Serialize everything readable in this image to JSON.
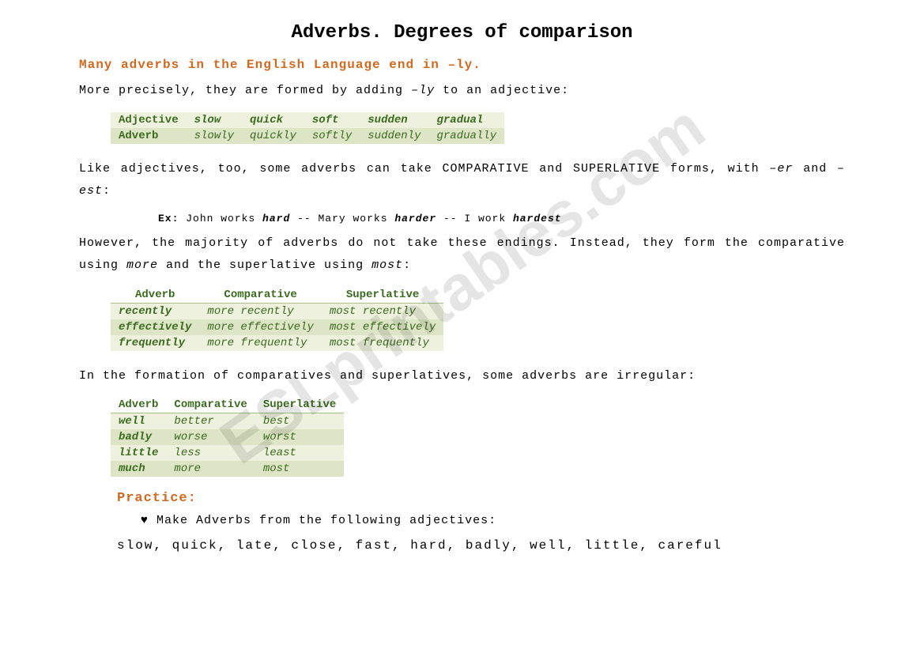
{
  "title": "Adverbs. Degrees of comparison",
  "subtitle": "Many adverbs in the English Language end in –ly.",
  "intro": {
    "pre": "More precisely, they are formed by adding ",
    "suffix": "–ly",
    "post": " to an adjective:"
  },
  "table1": {
    "colors": {
      "header_text": "#3a6b1e",
      "row_light": "#eef1dd",
      "row_dark": "#dde5c6"
    },
    "rows": [
      {
        "head": "Adjective",
        "cells": [
          "slow",
          "quick",
          "soft",
          "sudden",
          "gradual"
        ]
      },
      {
        "head": "Adverb",
        "cells": [
          "slowly",
          "quickly",
          "softly",
          "suddenly",
          "gradually"
        ]
      }
    ]
  },
  "para2": {
    "pre": "Like adjectives, too, some adverbs can take COMPARATIVE and SUPERLATIVE forms, with ",
    "s1": "–er",
    "mid": " and ",
    "s2": "–est",
    "post": ":"
  },
  "example": {
    "label": "Ex: ",
    "p1": "John works ",
    "w1": "hard",
    "sep1": " -- ",
    "p2": "Mary works ",
    "w2": "harder",
    "sep2": " -- ",
    "p3": "I work ",
    "w3": "hardest"
  },
  "para3": {
    "pre": "However, the majority of adverbs do not take these endings. Instead, they form the comparative using ",
    "w1": "more",
    "mid": " and the superlative using ",
    "w2": "most",
    "post": ":"
  },
  "table2": {
    "headers": [
      "Adverb",
      "Comparative",
      "Superlative"
    ],
    "rows": [
      {
        "adv": "recently",
        "comp": "more recently",
        "sup": "most recently"
      },
      {
        "adv": "effectively",
        "comp": "more effectively",
        "sup": "most effectively"
      },
      {
        "adv": "frequently",
        "comp": "more frequently",
        "sup": "most frequently"
      }
    ]
  },
  "para4": "In the formation of comparatives and superlatives, some adverbs are irregular:",
  "table3": {
    "headers": [
      "Adverb",
      "Comparative",
      "Superlative"
    ],
    "rows": [
      {
        "adv": "well",
        "comp": "better",
        "sup": "best"
      },
      {
        "adv": "badly",
        "comp": "worse",
        "sup": "worst"
      },
      {
        "adv": "little",
        "comp": "less",
        "sup": "least"
      },
      {
        "adv": "much",
        "comp": "more",
        "sup": "most"
      }
    ]
  },
  "practice": {
    "heading": "Practice:",
    "bullet_glyph": "♥",
    "bullet_text": " Make Adverbs from the following adjectives:",
    "words": "slow, quick, late, close, fast, hard, badly, well, little, careful"
  },
  "watermark": "ESLprintables.com"
}
